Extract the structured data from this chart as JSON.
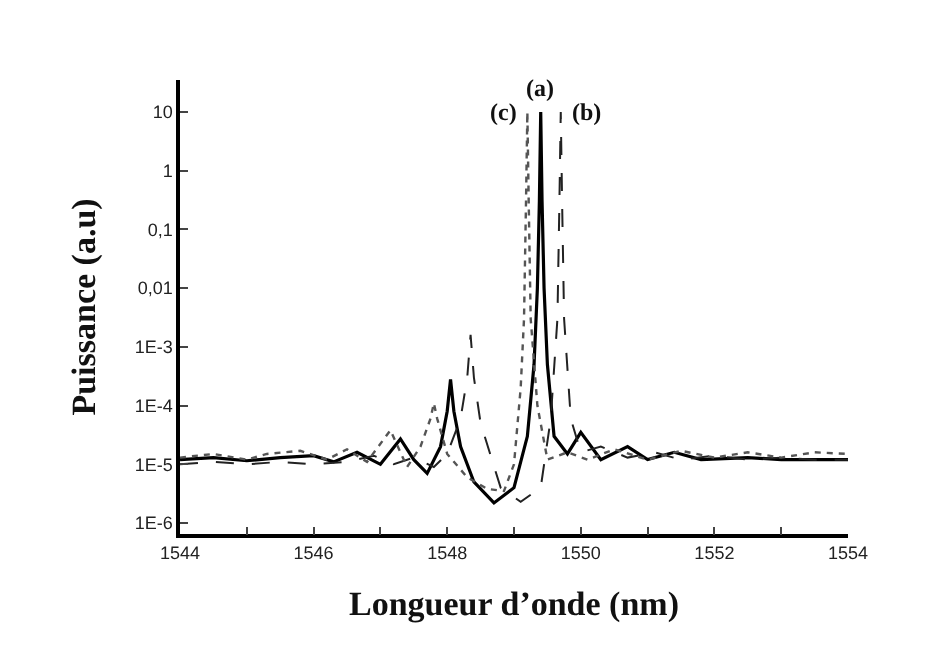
{
  "chart_data": {
    "type": "line",
    "xlabel": "Longueur d’onde (nm)",
    "ylabel": "Puissance (a.u)",
    "log": "y",
    "xlim": [
      1544,
      1554
    ],
    "xticks": [
      1544,
      {
        "value": 1545,
        "label": null
      },
      1546,
      {
        "value": 1547,
        "label": null
      },
      1548,
      {
        "value": 1549,
        "label": null
      },
      1550,
      {
        "value": 1551,
        "label": null
      },
      1552,
      {
        "value": 1553,
        "label": null
      },
      1554
    ],
    "ylim": [
      6.5e-07,
      35
    ],
    "yticks": [
      {
        "value": 1e-06,
        "label": "1E-6"
      },
      {
        "value": 1e-05,
        "label": "1E-5"
      },
      {
        "value": 0.0001,
        "label": "1E-4"
      },
      {
        "value": 0.001,
        "label": "1E-3"
      },
      {
        "value": 0.01,
        "label": "0,01"
      },
      {
        "value": 0.1,
        "label": "0,1"
      },
      1,
      10
    ],
    "annotations": [
      "(a)",
      "(b)",
      "(c)"
    ],
    "series": [
      {
        "color": "#000000",
        "line_style": "solid",
        "x": [
          1544,
          1544.5,
          1545,
          1545.5,
          1546,
          1546.3,
          1546.65,
          1547,
          1547.3,
          1547.5,
          1547.7,
          1547.9,
          1548.0,
          1548.05,
          1548.1,
          1548.2,
          1548.4,
          1548.7,
          1549.0,
          1549.2,
          1549.3,
          1549.35,
          1549.38,
          1549.4,
          1549.42,
          1549.45,
          1549.5,
          1549.6,
          1549.8,
          1550.0,
          1550.3,
          1550.7,
          1551,
          1551.4,
          1551.8,
          1552.5,
          1553,
          1554
        ],
        "values": [
          1.2e-05,
          1.3e-05,
          1.15e-05,
          1.3e-05,
          1.4e-05,
          1.1e-05,
          1.6e-05,
          1e-05,
          2.7e-05,
          1.2e-05,
          7e-06,
          2e-05,
          8e-05,
          0.00028,
          8e-05,
          2e-05,
          5e-06,
          2.2e-06,
          4e-06,
          3e-05,
          0.0005,
          0.01,
          0.3,
          10,
          0.3,
          0.01,
          0.0005,
          3e-05,
          1.5e-05,
          3.5e-05,
          1.2e-05,
          2e-05,
          1.2e-05,
          1.6e-05,
          1.2e-05,
          1.3e-05,
          1.2e-05,
          1.2e-05
        ]
      },
      {
        "color": "#222222",
        "line_style": "dashed",
        "x": [
          1544,
          1544.5,
          1545,
          1545.5,
          1546,
          1546.5,
          1546.9,
          1547.2,
          1547.5,
          1547.8,
          1548.0,
          1548.2,
          1548.3,
          1548.35,
          1548.4,
          1548.5,
          1548.8,
          1549.1,
          1549.4,
          1549.55,
          1549.65,
          1549.68,
          1549.7,
          1549.72,
          1549.75,
          1549.85,
          1550.0,
          1550.3,
          1550.7,
          1551.1,
          1551.5,
          1552,
          1552.5,
          1553,
          1553.5,
          1554
        ],
        "values": [
          1e-05,
          1.1e-05,
          1e-05,
          1.1e-05,
          1e-05,
          1.1e-05,
          1.4e-05,
          1e-05,
          1.3e-05,
          9e-06,
          1.5e-05,
          6e-05,
          0.0003,
          0.0016,
          0.0003,
          5e-05,
          4e-06,
          2.3e-06,
          4e-06,
          6e-05,
          0.003,
          0.3,
          10,
          0.3,
          0.003,
          6e-05,
          1.6e-05,
          2e-05,
          1.3e-05,
          1.6e-05,
          1.2e-05,
          1.4e-05,
          1.2e-05,
          1.3e-05,
          1.2e-05,
          1.2e-05
        ]
      },
      {
        "color": "#555555",
        "line_style": "dotted",
        "x": [
          1544,
          1544.5,
          1545,
          1545.3,
          1545.8,
          1546.2,
          1546.5,
          1546.8,
          1547.15,
          1547.4,
          1547.6,
          1547.75,
          1547.8,
          1547.85,
          1548.0,
          1548.3,
          1548.6,
          1548.85,
          1549.0,
          1549.1,
          1549.15,
          1549.18,
          1549.2,
          1549.22,
          1549.25,
          1549.35,
          1549.5,
          1549.8,
          1550.1,
          1550.5,
          1551,
          1551.5,
          1552,
          1552.5,
          1553,
          1553.5,
          1554
        ],
        "values": [
          1.3e-05,
          1.5e-05,
          1.2e-05,
          1.5e-05,
          1.7e-05,
          1.2e-05,
          1.8e-05,
          1.1e-05,
          3.8e-05,
          9e-06,
          2e-05,
          6e-05,
          0.00011,
          6e-05,
          1.5e-05,
          6e-06,
          3.8e-06,
          3.5e-06,
          1e-05,
          0.0002,
          0.003,
          0.3,
          10,
          0.3,
          0.003,
          0.0001,
          1.2e-05,
          1.6e-05,
          1.2e-05,
          1.8e-05,
          1.2e-05,
          1.7e-05,
          1.3e-05,
          1.6e-05,
          1.3e-05,
          1.6e-05,
          1.5e-05
        ]
      }
    ]
  }
}
